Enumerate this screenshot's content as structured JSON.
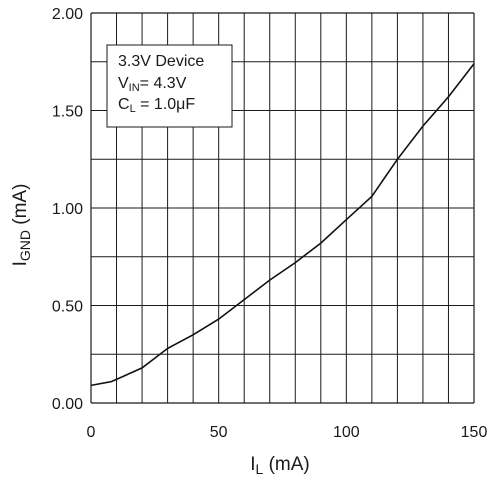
{
  "chart_data": {
    "type": "line",
    "x": [
      0,
      8,
      20,
      30,
      40,
      50,
      60,
      70,
      80,
      90,
      100,
      110,
      120,
      130,
      140,
      150
    ],
    "series": [
      {
        "values": [
          0.09,
          0.11,
          0.18,
          0.28,
          0.35,
          0.43,
          0.53,
          0.63,
          0.72,
          0.82,
          0.94,
          1.06,
          1.25,
          1.42,
          1.57,
          1.74
        ]
      }
    ],
    "xlabel": {
      "main": "I",
      "sub": "L",
      "unit": " (mA)"
    },
    "ylabel": {
      "main": "I",
      "sub": "GND",
      "unit": " (mA)"
    },
    "xlim": [
      0,
      150
    ],
    "ylim": [
      0,
      2.0
    ],
    "x_ticks": [
      "0",
      "50",
      "100",
      "150"
    ],
    "y_ticks": [
      "0.00",
      "0.50",
      "1.00",
      "1.50",
      "2.00"
    ],
    "grid": true,
    "annotation": {
      "line1": "3.3V Device",
      "line2_main": "V",
      "line2_sub": "IN",
      "line2_rest": "= 4.3V",
      "line3_main": "C",
      "line3_sub": "L",
      "line3_rest": " = 1.0μF"
    },
    "colors": {
      "line": "#111111",
      "grid": "#1a1a1a"
    }
  }
}
